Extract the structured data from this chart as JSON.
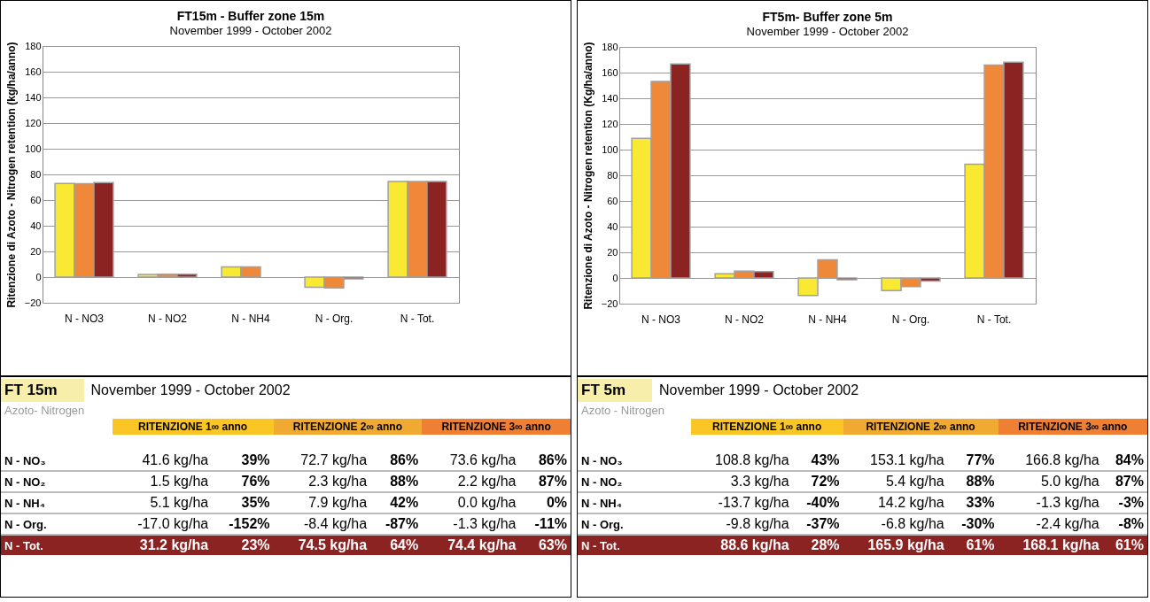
{
  "chart_data": [
    {
      "type": "bar",
      "title": "FT15m - Buffer zone 15m",
      "subtitle": "November 1999 - October 2002",
      "ylabel": "Ritenzione di Azoto - Nitrogen retention (kg/ha/anno)",
      "categories": [
        "N - NO3",
        "N - NO2",
        "N - NH4",
        "N - Org.",
        "N - Tot."
      ],
      "series": [
        {
          "color": "#f9e932",
          "values": [
            73,
            2,
            8,
            -8,
            74.5
          ]
        },
        {
          "color": "#f0883a",
          "values": [
            72.7,
            2.3,
            7.9,
            -8.4,
            74.5
          ]
        },
        {
          "color": "#8b2323",
          "values": [
            73.6,
            2.2,
            0,
            -1.3,
            74.4
          ]
        }
      ],
      "ylim": [
        -20,
        180
      ],
      "yticks": [
        -20,
        0,
        20,
        40,
        60,
        80,
        100,
        120,
        140,
        160,
        180
      ],
      "grid": "y"
    },
    {
      "type": "bar",
      "title": "FT5m- Buffer zone  5m",
      "subtitle": "November 1999 - October 2002",
      "ylabel": "Ritenzione di Azoto - Nitrogen retention (Kg/ha/anno)",
      "categories": [
        "N - NO3",
        "N - NO2",
        "N - NH4",
        "N - Org.",
        "N - Tot."
      ],
      "series": [
        {
          "color": "#f9e932",
          "values": [
            108.8,
            3.3,
            -13.7,
            -9.8,
            88.6
          ]
        },
        {
          "color": "#f0883a",
          "values": [
            153.1,
            5.4,
            14.2,
            -6.8,
            165.9
          ]
        },
        {
          "color": "#8b2323",
          "values": [
            166.8,
            5.0,
            -1.3,
            -2.4,
            168.1
          ]
        }
      ],
      "ylim": [
        -20,
        180
      ],
      "yticks": [
        -20,
        0,
        20,
        40,
        60,
        80,
        100,
        120,
        140,
        160,
        180
      ],
      "grid": "y"
    },
    {
      "type": "other",
      "title": "FT 15m",
      "subtitle": "November 1999 - October 2002",
      "annotations": [
        "Azoto- Nitrogen",
        "RITENZIONE 1∞ anno",
        "RITENZIONE 2∞ anno",
        "RITENZIONE 3∞ anno",
        "N - NO₃",
        "41.6 kg/ha",
        "39%",
        "72.7 kg/ha",
        "86%",
        "73.6 kg/ha",
        "86%",
        "N - NO₂",
        "1.5 kg/ha",
        "76%",
        "2.3 kg/ha",
        "88%",
        "2.2 kg/ha",
        "87%",
        "N - NH₄",
        "5.1 kg/ha",
        "35%",
        "7.9 kg/ha",
        "42%",
        "0.0 kg/ha",
        "0%",
        "N - Org.",
        "-17.0 kg/ha",
        "-152%",
        "-8.4 kg/ha",
        "-87%",
        "-1.3 kg/ha",
        "-11%",
        "N - Tot.",
        "31.2 kg/ha",
        "23%",
        "74.5 kg/ha",
        "64%",
        "74.4 kg/ha",
        "63%"
      ]
    },
    {
      "type": "other",
      "title": "FT 5m",
      "subtitle": "November 1999 - October 2002",
      "annotations": [
        "Azoto - Nitrogen",
        "RITENZIONE 1∞ anno",
        "RITENZIONE 2∞ anno",
        "RITENZIONE 3∞ anno",
        "N - NO₃",
        "108.8 kg/ha",
        "43%",
        "153.1 kg/ha",
        "77%",
        "166.8 kg/ha",
        "84%",
        "N - NO₂",
        "3.3 kg/ha",
        "72%",
        "5.4 kg/ha",
        "88%",
        "5.0 kg/ha",
        "87%",
        "N - NH₄",
        "-13.7 kg/ha",
        "-40%",
        "14.2 kg/ha",
        "33%",
        "-1.3 kg/ha",
        "-3%",
        "N - Org.",
        "-9.8 kg/ha",
        "-37%",
        "-6.8 kg/ha",
        "-30%",
        "-2.4 kg/ha",
        "-8%",
        "N - Tot.",
        "88.6 kg/ha",
        "28%",
        "165.9 kg/ha",
        "61%",
        "168.1 kg/ha",
        "61%"
      ]
    }
  ]
}
